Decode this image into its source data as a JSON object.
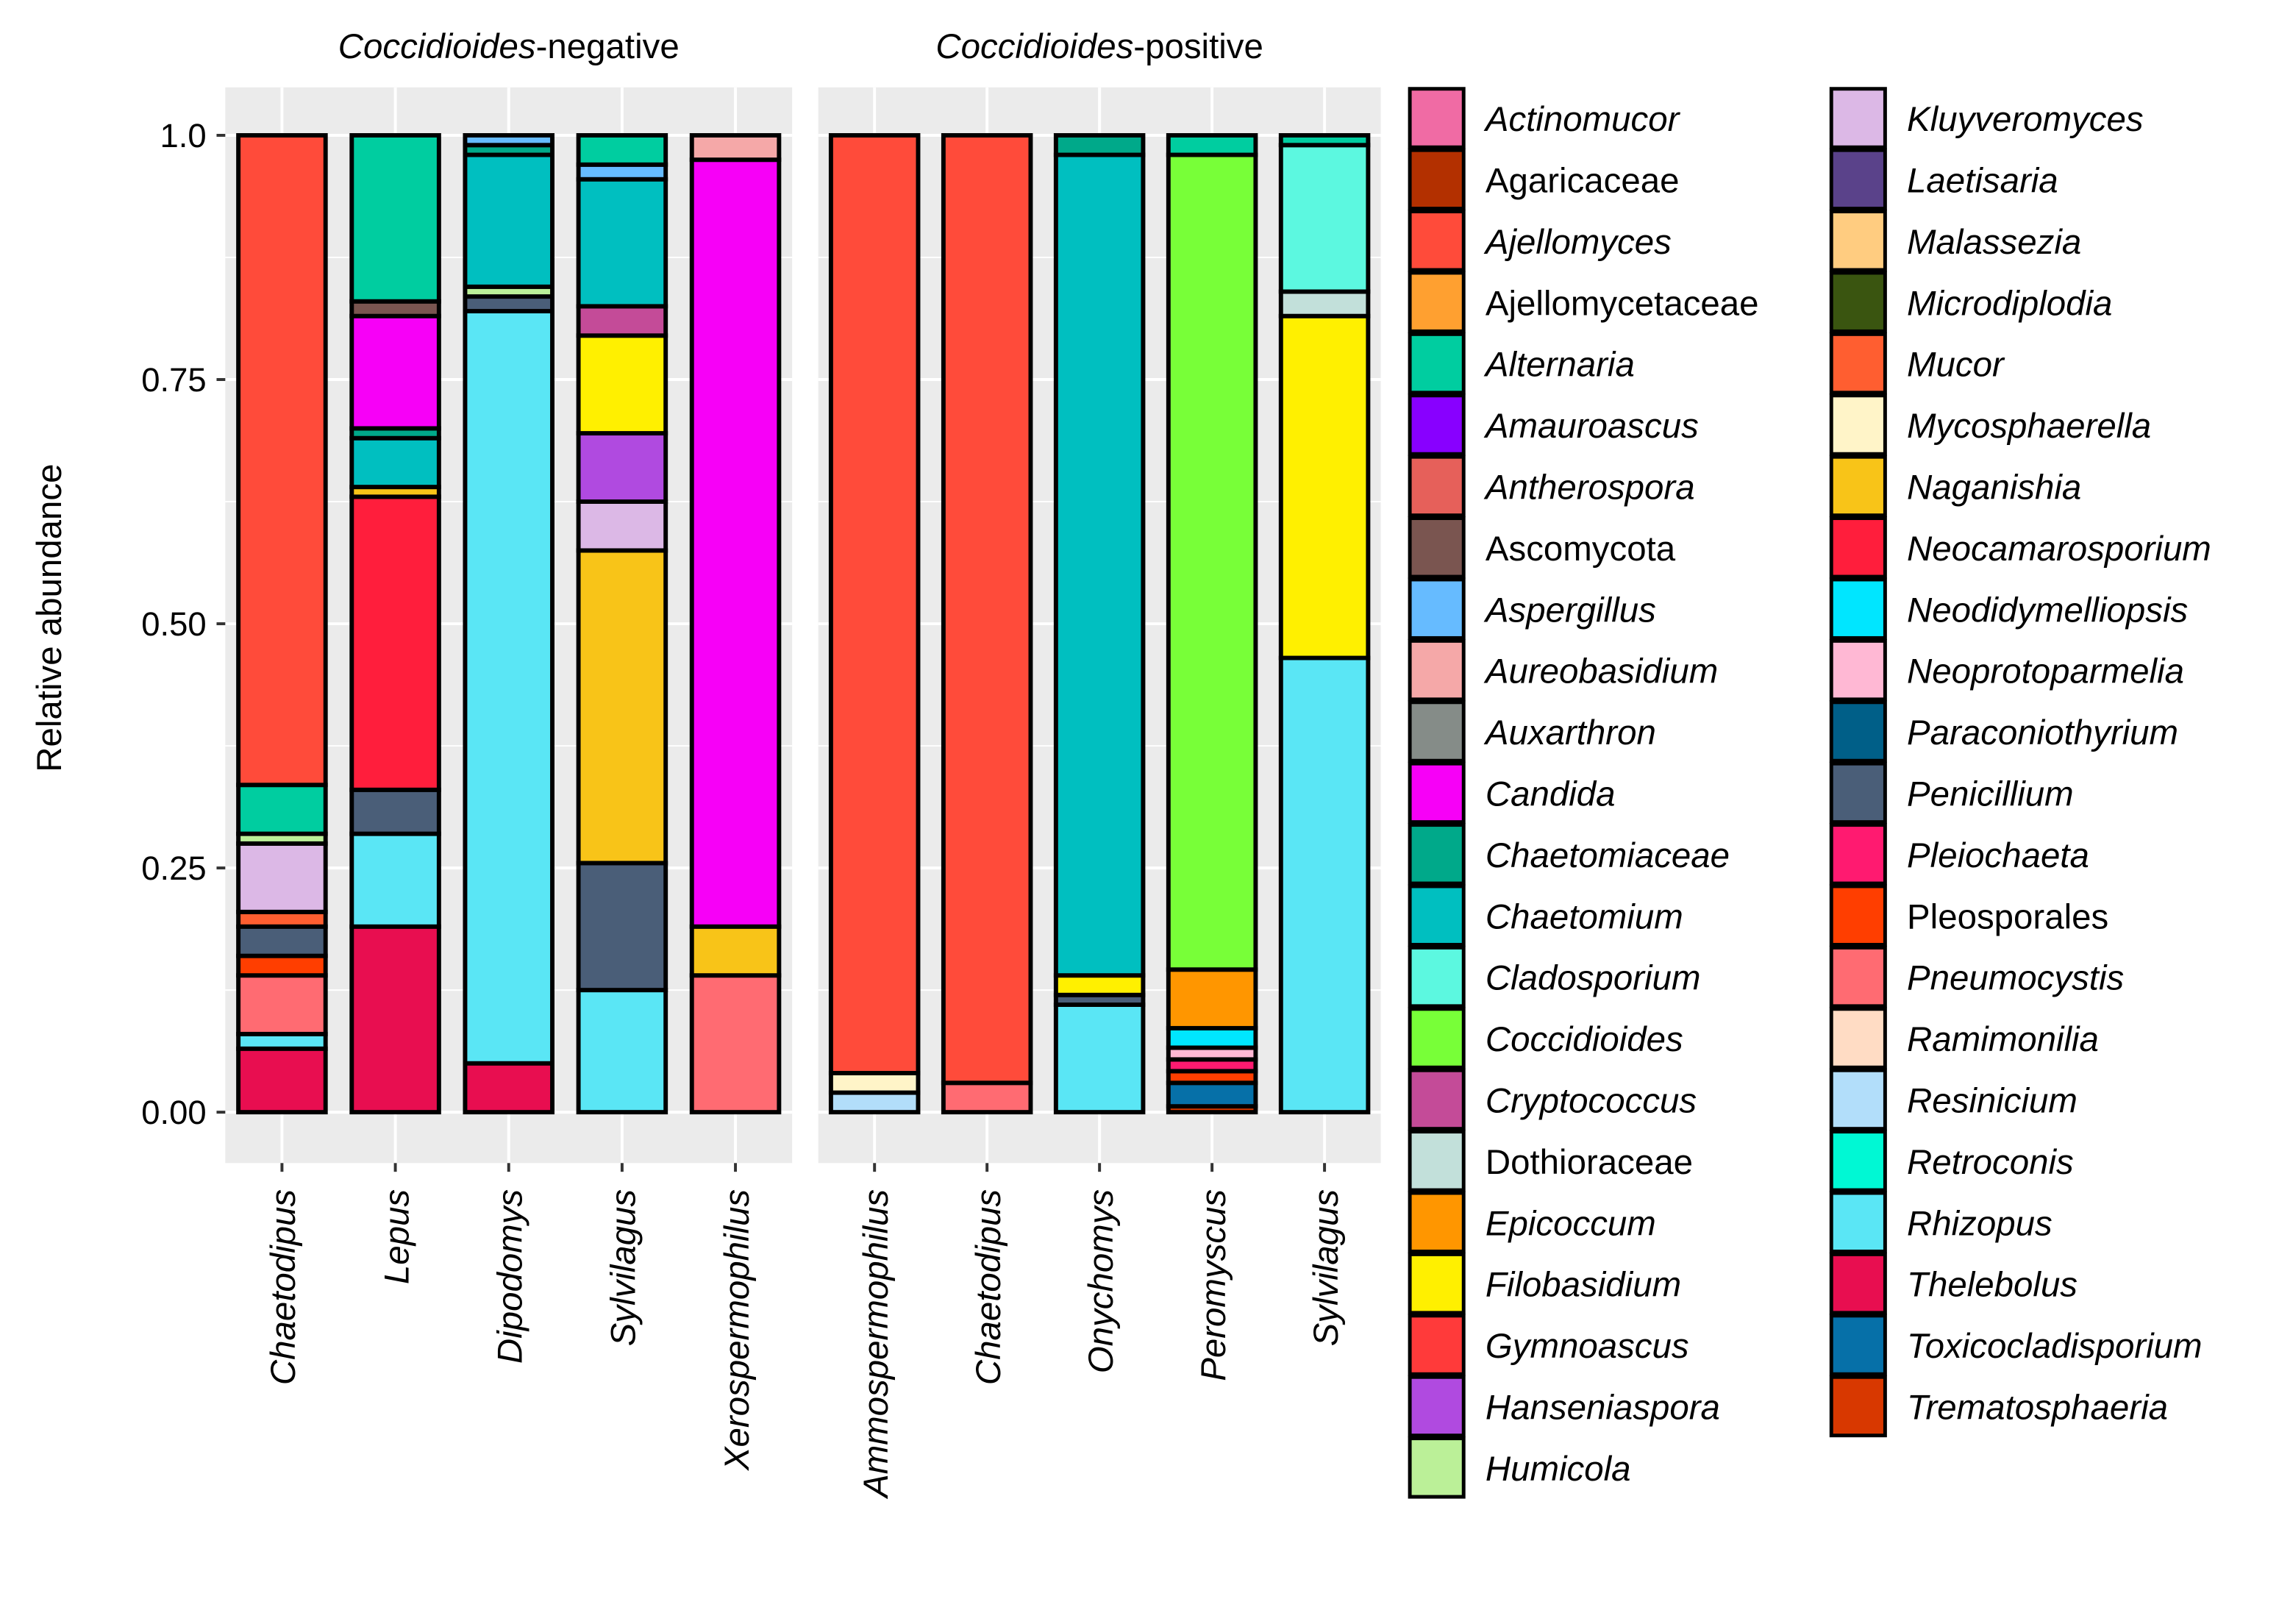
{
  "chart_data": {
    "type": "bar",
    "stacked": true,
    "ylabel": "Relative abundance",
    "ylim": [
      0,
      1
    ],
    "yticks": [
      "0.00",
      "0.25",
      "0.50",
      "0.75",
      "1.0"
    ],
    "ytick_values": [
      0,
      0.25,
      0.5,
      0.75,
      1.0
    ],
    "grid": true,
    "legend_placement": "right",
    "panels": [
      {
        "title_italic": "Coccidioides",
        "title_rest": "-negative",
        "bars": [
          {
            "category": "Chaetodipus",
            "segments": [
              {
                "taxon": "Thelebolus",
                "value": 0.065
              },
              {
                "taxon": "Rhizopus",
                "value": 0.015
              },
              {
                "taxon": "Pneumocystis",
                "value": 0.06
              },
              {
                "taxon": "Pleosporales",
                "value": 0.02
              },
              {
                "taxon": "Penicillium",
                "value": 0.03
              },
              {
                "taxon": "Mucor",
                "value": 0.015
              },
              {
                "taxon": "Kluyveromyces",
                "value": 0.07
              },
              {
                "taxon": "Humicola",
                "value": 0.01
              },
              {
                "taxon": "Alternaria",
                "value": 0.05
              },
              {
                "taxon": "Ajellomyces",
                "value": 0.665
              }
            ]
          },
          {
            "category": "Lepus",
            "segments": [
              {
                "taxon": "Thelebolus",
                "value": 0.19
              },
              {
                "taxon": "Rhizopus",
                "value": 0.095
              },
              {
                "taxon": "Penicillium",
                "value": 0.045
              },
              {
                "taxon": "Neocamarosporium",
                "value": 0.3
              },
              {
                "taxon": "Naganishia",
                "value": 0.01
              },
              {
                "taxon": "Chaetomium",
                "value": 0.05
              },
              {
                "taxon": "Chaetomiaceae",
                "value": 0.01
              },
              {
                "taxon": "Candida",
                "value": 0.115
              },
              {
                "taxon": "Ascomycota",
                "value": 0.015
              },
              {
                "taxon": "Alternaria",
                "value": 0.17
              }
            ]
          },
          {
            "category": "Dipodomys",
            "segments": [
              {
                "taxon": "Thelebolus",
                "value": 0.05
              },
              {
                "taxon": "Rhizopus",
                "value": 0.77
              },
              {
                "taxon": "Penicillium",
                "value": 0.015
              },
              {
                "taxon": "Humicola",
                "value": 0.01
              },
              {
                "taxon": "Chaetomium",
                "value": 0.135
              },
              {
                "taxon": "Chaetomiaceae",
                "value": 0.01
              },
              {
                "taxon": "Aspergillus",
                "value": 0.01
              }
            ]
          },
          {
            "category": "Sylvilagus",
            "segments": [
              {
                "taxon": "Rhizopus",
                "value": 0.125
              },
              {
                "taxon": "Penicillium",
                "value": 0.13
              },
              {
                "taxon": "Naganishia",
                "value": 0.32
              },
              {
                "taxon": "Kluyveromyces",
                "value": 0.05
              },
              {
                "taxon": "Hanseniaspora",
                "value": 0.07
              },
              {
                "taxon": "Filobasidium",
                "value": 0.1
              },
              {
                "taxon": "Cryptococcus",
                "value": 0.03
              },
              {
                "taxon": "Chaetomium",
                "value": 0.13
              },
              {
                "taxon": "Aspergillus",
                "value": 0.015
              },
              {
                "taxon": "Alternaria",
                "value": 0.03
              }
            ]
          },
          {
            "category": "Xerospermophilus",
            "segments": [
              {
                "taxon": "Pneumocystis",
                "value": 0.14
              },
              {
                "taxon": "Naganishia",
                "value": 0.05
              },
              {
                "taxon": "Candida",
                "value": 0.785
              },
              {
                "taxon": "Aureobasidium",
                "value": 0.025
              }
            ]
          }
        ]
      },
      {
        "title_italic": "Coccidioides",
        "title_rest": "-positive",
        "bars": [
          {
            "category": "Ammospermophilus",
            "segments": [
              {
                "taxon": "Resinicium",
                "value": 0.02
              },
              {
                "taxon": "Mycosphaerella",
                "value": 0.02
              },
              {
                "taxon": "Ajellomyces",
                "value": 0.96
              }
            ]
          },
          {
            "category": "Chaetodipus",
            "segments": [
              {
                "taxon": "Pneumocystis",
                "value": 0.03
              },
              {
                "taxon": "Ajellomyces",
                "value": 0.97
              }
            ]
          },
          {
            "category": "Onychomys",
            "segments": [
              {
                "taxon": "Rhizopus",
                "value": 0.11
              },
              {
                "taxon": "Penicillium",
                "value": 0.01
              },
              {
                "taxon": "Filobasidium",
                "value": 0.02
              },
              {
                "taxon": "Chaetomium",
                "value": 0.84
              },
              {
                "taxon": "Chaetomiaceae",
                "value": 0.02
              }
            ]
          },
          {
            "category": "Peromyscus",
            "segments": [
              {
                "taxon": "Trematosphaeria",
                "value": 0.006
              },
              {
                "taxon": "Toxicocladisporium",
                "value": 0.024
              },
              {
                "taxon": "Pleosporales",
                "value": 0.012
              },
              {
                "taxon": "Pleiochaeta",
                "value": 0.012
              },
              {
                "taxon": "Neoprotoparmelia",
                "value": 0.012
              },
              {
                "taxon": "Neodidymelliopsis",
                "value": 0.02
              },
              {
                "taxon": "Epicoccum",
                "value": 0.06
              },
              {
                "taxon": "Coccidioides",
                "value": 0.834
              },
              {
                "taxon": "Alternaria",
                "value": 0.02
              }
            ]
          },
          {
            "category": "Sylvilagus",
            "segments": [
              {
                "taxon": "Rhizopus",
                "value": 0.465
              },
              {
                "taxon": "Filobasidium",
                "value": 0.35
              },
              {
                "taxon": "Dothioraceae",
                "value": 0.025
              },
              {
                "taxon": "Cladosporium",
                "value": 0.15
              },
              {
                "taxon": "Alternaria",
                "value": 0.01
              }
            ]
          }
        ]
      }
    ],
    "legend": [
      {
        "name": "Actinomucor",
        "color": "#F06BA4",
        "italic": true
      },
      {
        "name": "Agaricaceae",
        "color": "#B33000",
        "italic": false
      },
      {
        "name": "Ajellomyces",
        "color": "#FF4B3A",
        "italic": true
      },
      {
        "name": "Ajellomycetaceae",
        "color": "#FFA030",
        "italic": false
      },
      {
        "name": "Alternaria",
        "color": "#00CDA0",
        "italic": true
      },
      {
        "name": "Amauroascus",
        "color": "#8800FF",
        "italic": true
      },
      {
        "name": "Antherospora",
        "color": "#E6605A",
        "italic": true
      },
      {
        "name": "Ascomycota",
        "color": "#7A5550",
        "italic": false
      },
      {
        "name": "Aspergillus",
        "color": "#66BBFF",
        "italic": true
      },
      {
        "name": "Aureobasidium",
        "color": "#F5A8A8",
        "italic": true
      },
      {
        "name": "Auxarthron",
        "color": "#858C88",
        "italic": true
      },
      {
        "name": "Candida",
        "color": "#F700F7",
        "italic": true
      },
      {
        "name": "Chaetomiaceae",
        "color": "#00A98A",
        "italic": true
      },
      {
        "name": "Chaetomium",
        "color": "#00BFC0",
        "italic": true
      },
      {
        "name": "Cladosporium",
        "color": "#5CF8E0",
        "italic": true
      },
      {
        "name": "Coccidioides",
        "color": "#78FF38",
        "italic": true
      },
      {
        "name": "Cryptococcus",
        "color": "#C44B98",
        "italic": true
      },
      {
        "name": "Dothioraceae",
        "color": "#C2E0DA",
        "italic": false
      },
      {
        "name": "Epicoccum",
        "color": "#FF9600",
        "italic": true
      },
      {
        "name": "Filobasidium",
        "color": "#FFF000",
        "italic": true
      },
      {
        "name": "Gymnoascus",
        "color": "#FF3A3A",
        "italic": true
      },
      {
        "name": "Hanseniaspora",
        "color": "#B04AE0",
        "italic": true
      },
      {
        "name": "Humicola",
        "color": "#BBF098",
        "italic": true
      },
      {
        "name": "Kluyveromyces",
        "color": "#DCB8E6",
        "italic": true
      },
      {
        "name": "Laetisaria",
        "color": "#5A428A",
        "italic": true
      },
      {
        "name": "Malassezia",
        "color": "#FFCC80",
        "italic": true
      },
      {
        "name": "Microdiplodia",
        "color": "#3A5510",
        "italic": true
      },
      {
        "name": "Mucor",
        "color": "#FF5E30",
        "italic": true
      },
      {
        "name": "Mycosphaerella",
        "color": "#FFF4C8",
        "italic": true
      },
      {
        "name": "Naganishia",
        "color": "#F8C418",
        "italic": true
      },
      {
        "name": "Neocamarosporium",
        "color": "#FF1E3C",
        "italic": true
      },
      {
        "name": "Neodidymelliopsis",
        "color": "#00E6FF",
        "italic": true
      },
      {
        "name": "Neoprotoparmelia",
        "color": "#FFB8D4",
        "italic": true
      },
      {
        "name": "Paraconiothyrium",
        "color": "#005F88",
        "italic": true
      },
      {
        "name": "Penicillium",
        "color": "#4A5E78",
        "italic": true
      },
      {
        "name": "Pleiochaeta",
        "color": "#FF1A70",
        "italic": true
      },
      {
        "name": "Pleosporales",
        "color": "#FF3E00",
        "italic": false
      },
      {
        "name": "Pneumocystis",
        "color": "#FF6B72",
        "italic": true
      },
      {
        "name": "Ramimonilia",
        "color": "#FFDCC4",
        "italic": true
      },
      {
        "name": "Resinicium",
        "color": "#B2DEFA",
        "italic": true
      },
      {
        "name": "Retroconis",
        "color": "#00F8D4",
        "italic": true
      },
      {
        "name": "Rhizopus",
        "color": "#5AE6F5",
        "italic": true
      },
      {
        "name": "Thelebolus",
        "color": "#E80E50",
        "italic": true
      },
      {
        "name": "Toxicocladisporium",
        "color": "#0670A8",
        "italic": true
      },
      {
        "name": "Trematosphaeria",
        "color": "#D83800",
        "italic": true
      }
    ]
  }
}
